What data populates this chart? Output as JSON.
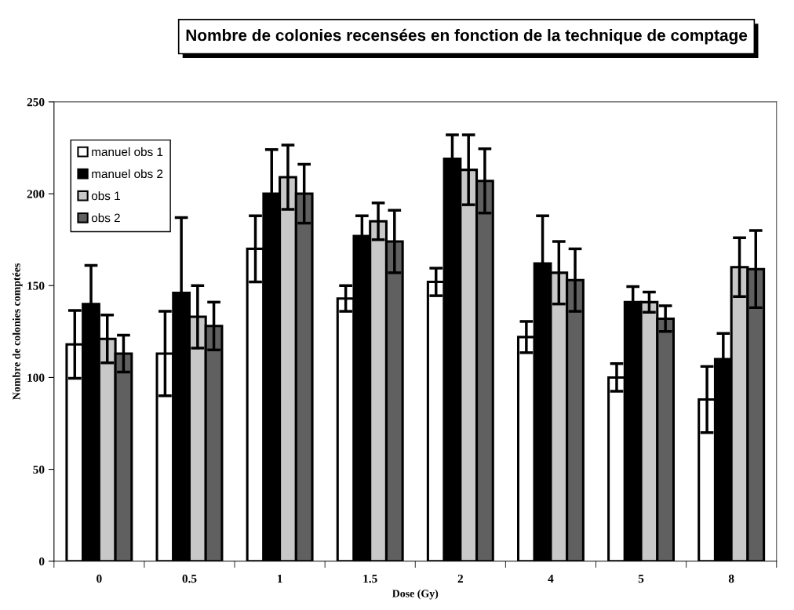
{
  "chart_data": {
    "type": "bar",
    "title": "Nombre de colonies recensées en fonction de la technique de comptage",
    "xlabel": "Dose (Gy)",
    "ylabel": "Nombre de colonies comptées",
    "categories": [
      "0",
      "0.5",
      "1",
      "1.5",
      "2",
      "4",
      "5",
      "8"
    ],
    "series": [
      {
        "name": "manuel obs 1",
        "color": "#ffffff",
        "values": [
          118,
          113,
          170,
          143,
          152,
          122,
          100,
          88
        ],
        "errors": [
          18.5,
          23,
          18,
          7,
          7.5,
          8.5,
          7.5,
          18
        ]
      },
      {
        "name": "manuel obs 2",
        "color": "#000000",
        "values": [
          140,
          146,
          200,
          177,
          219,
          162,
          141,
          110
        ],
        "errors": [
          21,
          41,
          24,
          11,
          13,
          26,
          8.5,
          14
        ]
      },
      {
        "name": "obs 1",
        "color": "#c8c8c8",
        "values": [
          121,
          133,
          209,
          185,
          213,
          157,
          141,
          160
        ],
        "errors": [
          13,
          17,
          17.5,
          10,
          19,
          17,
          5.5,
          16
        ]
      },
      {
        "name": "obs 2",
        "color": "#606060",
        "values": [
          113,
          128,
          200,
          174,
          207,
          153,
          132,
          159
        ],
        "errors": [
          10,
          13,
          16,
          17,
          17.5,
          17,
          7,
          21
        ]
      }
    ],
    "ylim": [
      0,
      250
    ],
    "yticks": [
      0,
      50,
      100,
      150,
      200,
      250
    ],
    "grid": false,
    "legend": "top left"
  }
}
